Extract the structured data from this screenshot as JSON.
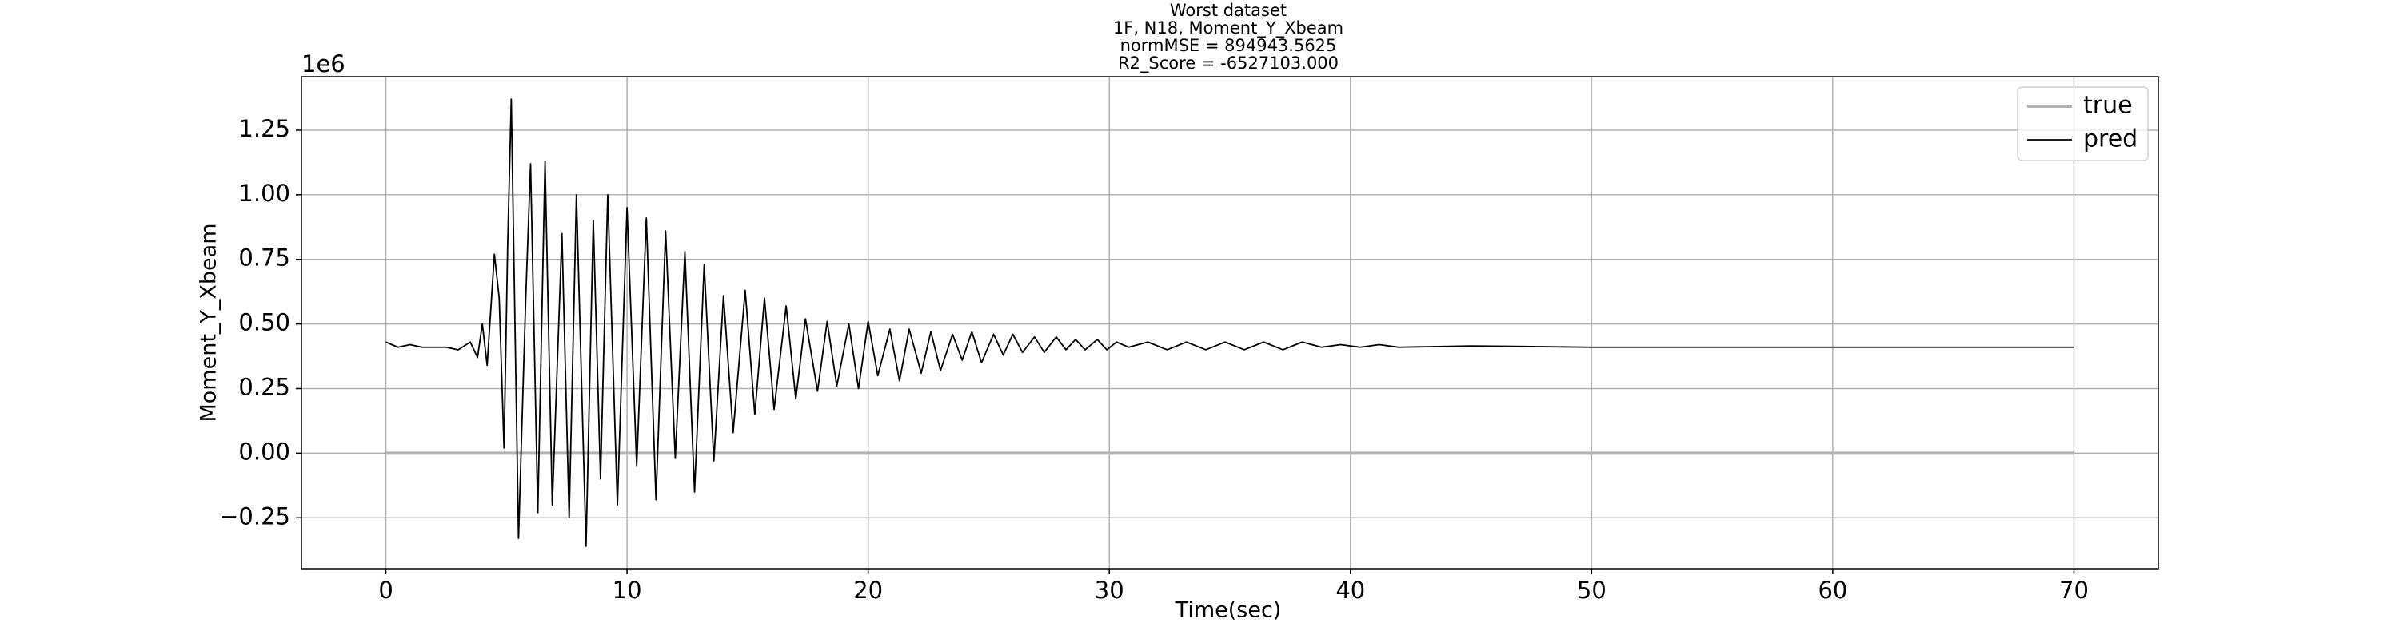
{
  "chart_data": {
    "type": "line",
    "title": [
      "Worst dataset",
      "1F, N18, Moment_Y_Xbeam",
      "normMSE = 894943.5625",
      "R2_Score = -6527103.000"
    ],
    "x_label": "Time(sec)",
    "y_label": "Moment_Y_Xbeam",
    "y_offset_label": "1e6",
    "xlim": [
      -3.5,
      73.5
    ],
    "xticks": [
      0,
      10,
      20,
      30,
      40,
      50,
      60,
      70
    ],
    "ylim": [
      -0.447,
      1.457
    ],
    "yticks": [
      {
        "value": -0.25,
        "label": "−0.25"
      },
      {
        "value": 0,
        "label": "0.00"
      },
      {
        "value": 0.25,
        "label": "0.25"
      },
      {
        "value": 0.5,
        "label": "0.50"
      },
      {
        "value": 0.75,
        "label": "0.75"
      },
      {
        "value": 1.0,
        "label": "1.00"
      },
      {
        "value": 1.25,
        "label": "1.25"
      }
    ],
    "grid": true,
    "legend": "upper right",
    "series": [
      {
        "name": "true",
        "color": "#b3b3b3",
        "x": [
          0,
          70
        ],
        "values": [
          0,
          0
        ]
      },
      {
        "name": "pred",
        "color": "#000000",
        "x": [
          0,
          0.5,
          1,
          1.5,
          2,
          2.5,
          3,
          3.5,
          3.8,
          4.0,
          4.2,
          4.5,
          4.7,
          4.9,
          5.05,
          5.2,
          5.5,
          5.8,
          6.0,
          6.3,
          6.6,
          6.9,
          7.3,
          7.6,
          7.9,
          8.3,
          8.6,
          8.9,
          9.2,
          9.6,
          10.0,
          10.4,
          10.8,
          11.2,
          11.6,
          12.0,
          12.4,
          12.8,
          13.2,
          13.6,
          14.0,
          14.4,
          14.9,
          15.3,
          15.7,
          16.1,
          16.6,
          17.0,
          17.4,
          17.9,
          18.3,
          18.7,
          19.2,
          19.6,
          20.0,
          20.4,
          20.9,
          21.3,
          21.7,
          22.2,
          22.6,
          23.0,
          23.5,
          23.9,
          24.3,
          24.7,
          25.2,
          25.6,
          26.0,
          26.4,
          26.9,
          27.3,
          27.8,
          28.2,
          28.6,
          29.0,
          29.5,
          29.9,
          30.3,
          30.8,
          31.6,
          32.4,
          33.2,
          34.0,
          34.8,
          35.6,
          36.4,
          37.2,
          38.0,
          38.8,
          39.6,
          40.4,
          41.2,
          42.0,
          45.0,
          50.0,
          60.0,
          70.0
        ],
        "values": [
          0.43,
          0.41,
          0.42,
          0.41,
          0.41,
          0.41,
          0.4,
          0.43,
          0.37,
          0.5,
          0.34,
          0.77,
          0.6,
          0.02,
          0.8,
          1.37,
          -0.33,
          0.6,
          1.12,
          -0.23,
          1.13,
          -0.2,
          0.85,
          -0.25,
          1.0,
          -0.36,
          0.9,
          -0.1,
          1.0,
          -0.2,
          0.95,
          -0.05,
          0.91,
          -0.18,
          0.86,
          -0.02,
          0.78,
          -0.15,
          0.73,
          -0.03,
          0.61,
          0.08,
          0.63,
          0.15,
          0.6,
          0.17,
          0.57,
          0.21,
          0.52,
          0.24,
          0.51,
          0.26,
          0.5,
          0.25,
          0.51,
          0.3,
          0.48,
          0.28,
          0.48,
          0.31,
          0.47,
          0.32,
          0.46,
          0.36,
          0.47,
          0.35,
          0.46,
          0.38,
          0.46,
          0.39,
          0.45,
          0.39,
          0.45,
          0.4,
          0.44,
          0.4,
          0.44,
          0.4,
          0.43,
          0.41,
          0.43,
          0.4,
          0.43,
          0.4,
          0.43,
          0.4,
          0.43,
          0.4,
          0.43,
          0.41,
          0.42,
          0.41,
          0.42,
          0.41,
          0.415,
          0.41,
          0.41,
          0.41
        ]
      }
    ]
  }
}
